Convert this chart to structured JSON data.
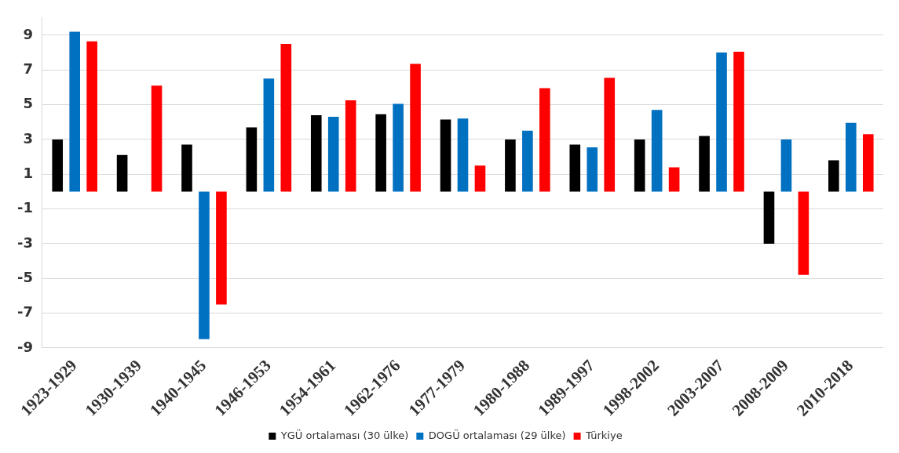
{
  "chart_data": {
    "type": "bar",
    "categories": [
      "1923-1929",
      "1930-1939",
      "1940-1945",
      "1946-1953",
      "1954-1961",
      "1962-1976",
      "1977-1979",
      "1980-1988",
      "1989-1997",
      "1998-2002",
      "2003-2007",
      "2008-2009",
      "2010-2018"
    ],
    "series": [
      {
        "name": "YGÜ ortalaması (30 ülke)",
        "color": "#000000",
        "values": [
          3.0,
          2.1,
          2.7,
          3.7,
          4.4,
          4.45,
          4.15,
          3.0,
          2.7,
          3.0,
          3.2,
          -3.0,
          1.8
        ]
      },
      {
        "name": "DOGÜ ortalaması (29 ülke)",
        "color": "#0070c0",
        "values": [
          9.2,
          null,
          -8.5,
          6.5,
          4.3,
          5.05,
          4.2,
          3.5,
          2.55,
          4.7,
          8.0,
          3.0,
          3.95
        ]
      },
      {
        "name": "Türkiye",
        "color": "#ff0000",
        "values": [
          8.65,
          6.1,
          -6.5,
          8.5,
          5.25,
          7.35,
          1.5,
          5.95,
          6.55,
          1.4,
          8.05,
          -4.8,
          3.3
        ]
      }
    ],
    "ylim": [
      -9,
      10
    ],
    "yticks": [
      -9,
      -7,
      -5,
      -3,
      -1,
      1,
      3,
      5,
      7,
      9
    ],
    "grid": "y",
    "legend": "bottom"
  }
}
